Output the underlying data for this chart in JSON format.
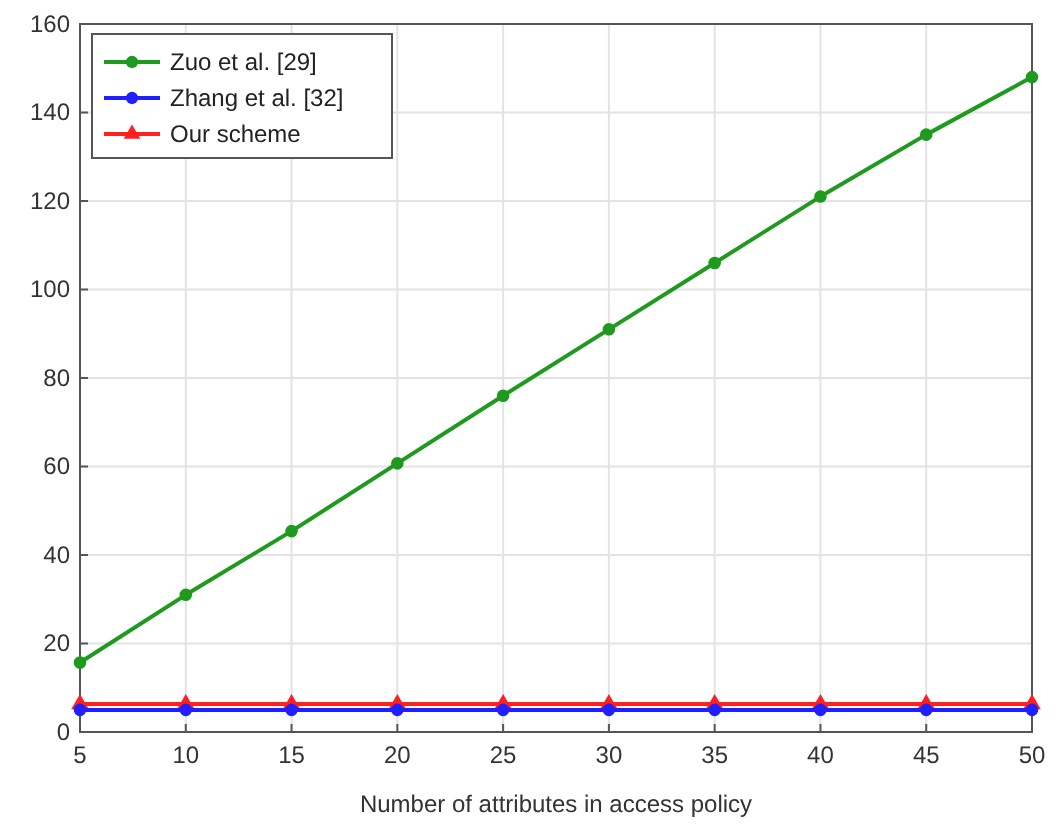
{
  "chart_data": {
    "type": "line",
    "xlabel": "Number of attributes in access policy",
    "x": [
      5,
      10,
      15,
      20,
      25,
      30,
      35,
      40,
      45,
      50
    ],
    "xlim": [
      5,
      50
    ],
    "xticks": [
      5,
      10,
      15,
      20,
      25,
      30,
      35,
      40,
      45,
      50
    ],
    "ylim": [
      0,
      160
    ],
    "yticks": [
      0,
      20,
      40,
      60,
      80,
      100,
      120,
      140,
      160
    ],
    "grid": true,
    "legend": "top left",
    "series": [
      {
        "name": "Zuo et al. [29]",
        "color": "#1e9a1e",
        "marker": "circle",
        "values": [
          15.7,
          31,
          45.4,
          60.7,
          76,
          91,
          106,
          121,
          135,
          148
        ]
      },
      {
        "name": "Zhang et al. [32]",
        "color": "#2020ff",
        "marker": "circle",
        "values": [
          5,
          5,
          5,
          5,
          5,
          5,
          5,
          5,
          5,
          5
        ]
      },
      {
        "name": "Our scheme",
        "color": "#ff2020",
        "marker": "triangle",
        "values": [
          6.3,
          6.3,
          6.3,
          6.3,
          6.3,
          6.3,
          6.3,
          6.3,
          6.3,
          6.3
        ]
      }
    ]
  }
}
